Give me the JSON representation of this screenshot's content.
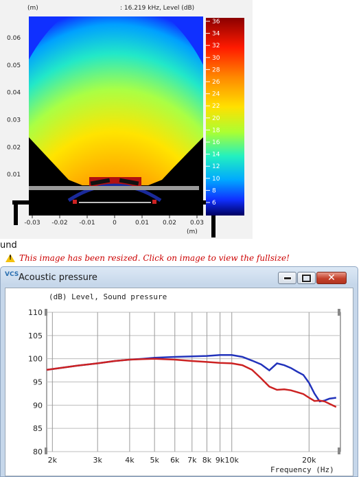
{
  "heatmap": {
    "y_unit": "(m)",
    "header": ": 16.219 kHz, Level  (dB)",
    "y_ticks": [
      "0.06",
      "0.05",
      "0.04",
      "0.03",
      "0.02",
      "0.01"
    ],
    "x_ticks": [
      "-0.03",
      "-0.02",
      "-0.01",
      "0",
      "0.01",
      "0.02",
      "0.03"
    ],
    "x_unit": "(m)",
    "colorbar_ticks": [
      "36",
      "34",
      "32",
      "30",
      "28",
      "26",
      "24",
      "22",
      "20",
      "18",
      "16",
      "14",
      "12",
      "10",
      "8",
      "6"
    ]
  },
  "snippet_text": "und",
  "resize_notice": "This image has been resized. Click on image to view the fullsize!",
  "window": {
    "icon_label": "VCS",
    "title": "Acoustic pressure",
    "minimize_icon": "minimize-icon",
    "maximize_icon": "maximize-icon",
    "close_icon": "close-icon"
  },
  "chart_data": {
    "type": "line",
    "title": "(dB)  Level, Sound pressure",
    "xlabel": "Frequency  (Hz)",
    "ylabel": "",
    "x_scale": "log",
    "xlim": [
      1900,
      26500
    ],
    "ylim": [
      80,
      110
    ],
    "y_ticks": [
      110,
      105,
      100,
      95,
      90,
      85,
      80
    ],
    "x_tick_labels": [
      {
        "label": "2k",
        "value": 2000
      },
      {
        "label": "3k",
        "value": 3000
      },
      {
        "label": "4k",
        "value": 4000
      },
      {
        "label": "5k",
        "value": 5000
      },
      {
        "label": "6k",
        "value": 6000
      },
      {
        "label": "7k",
        "value": 7000
      },
      {
        "label": "8k",
        "value": 8000
      },
      {
        "label": "9k",
        "value": 9000
      },
      {
        "label": "10k",
        "value": 10000
      },
      {
        "label": "20k",
        "value": 20000
      }
    ],
    "grid": true,
    "series": [
      {
        "color": "#2233bb",
        "points": [
          [
            1900,
            97.6
          ],
          [
            2500,
            98.5
          ],
          [
            3000,
            99.0
          ],
          [
            3500,
            99.5
          ],
          [
            4000,
            99.8
          ],
          [
            4500,
            100.0
          ],
          [
            5000,
            100.2
          ],
          [
            6000,
            100.4
          ],
          [
            7000,
            100.5
          ],
          [
            8000,
            100.6
          ],
          [
            9000,
            100.8
          ],
          [
            10000,
            100.8
          ],
          [
            11000,
            100.4
          ],
          [
            12000,
            99.6
          ],
          [
            13000,
            98.8
          ],
          [
            14000,
            97.5
          ],
          [
            15000,
            99.0
          ],
          [
            16000,
            98.6
          ],
          [
            17000,
            98.0
          ],
          [
            18000,
            97.2
          ],
          [
            19000,
            96.5
          ],
          [
            20000,
            94.8
          ],
          [
            21000,
            92.5
          ],
          [
            22000,
            90.8
          ],
          [
            23000,
            91.0
          ],
          [
            24000,
            91.4
          ],
          [
            25500,
            91.6
          ]
        ]
      },
      {
        "color": "#cc2222",
        "points": [
          [
            1900,
            97.6
          ],
          [
            2500,
            98.5
          ],
          [
            3000,
            99.0
          ],
          [
            3500,
            99.5
          ],
          [
            4000,
            99.8
          ],
          [
            4500,
            99.9
          ],
          [
            5000,
            100.0
          ],
          [
            6000,
            99.8
          ],
          [
            7000,
            99.5
          ],
          [
            8000,
            99.3
          ],
          [
            9000,
            99.1
          ],
          [
            10000,
            99.0
          ],
          [
            11000,
            98.6
          ],
          [
            12000,
            97.6
          ],
          [
            13000,
            95.8
          ],
          [
            14000,
            94.0
          ],
          [
            15000,
            93.3
          ],
          [
            16000,
            93.4
          ],
          [
            17000,
            93.2
          ],
          [
            18000,
            92.8
          ],
          [
            19000,
            92.4
          ],
          [
            20000,
            91.6
          ],
          [
            21000,
            90.9
          ],
          [
            22000,
            91.0
          ],
          [
            23000,
            90.8
          ],
          [
            24000,
            90.3
          ],
          [
            25500,
            89.6
          ]
        ]
      }
    ]
  }
}
